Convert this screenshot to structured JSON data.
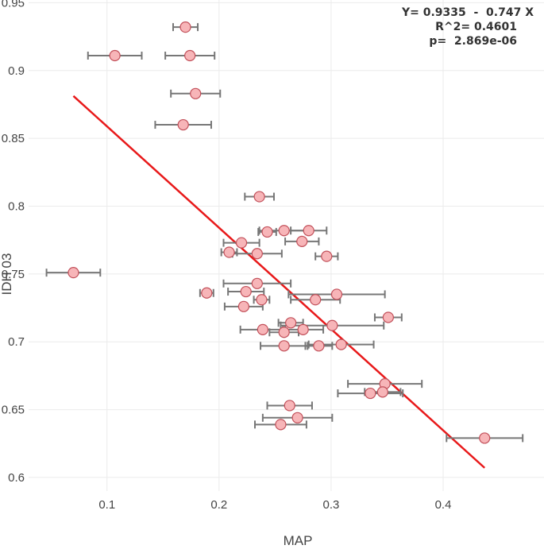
{
  "chart_data": {
    "type": "scatter",
    "title": "",
    "xlabel": "MAP",
    "ylabel": "IDH 03",
    "xlim": [
      0.03,
      0.49
    ],
    "ylim": [
      0.59,
      0.952
    ],
    "x_ticks": [
      0.1,
      0.2,
      0.3,
      0.4
    ],
    "x_tick_labels": [
      "0.1",
      "0.2",
      "0.3",
      "0.4"
    ],
    "y_ticks": [
      0.6,
      0.65,
      0.7,
      0.75,
      0.8,
      0.85,
      0.9,
      0.95
    ],
    "y_tick_labels": [
      "0.6",
      "0.65",
      "0.7",
      "0.75",
      "0.8",
      "0.85",
      "0.9",
      "0.95"
    ],
    "grid": true,
    "annotation": [
      "Y= 0.9335  -  0.747 X",
      "R^2= 0.4601",
      "p=  2.869e-06"
    ],
    "regression": {
      "intercept": 0.9335,
      "slope": -0.747,
      "x_range": [
        0.07,
        0.437
      ],
      "color": "#e8191a"
    },
    "marker_color": "#f7b5b8",
    "marker_edge": "#c2505a",
    "errorbar_color": "#777777",
    "points": [
      {
        "x": 0.17,
        "y": 0.932,
        "xerr": 0.011
      },
      {
        "x": 0.107,
        "y": 0.911,
        "xerr": 0.024
      },
      {
        "x": 0.174,
        "y": 0.911,
        "xerr": 0.022
      },
      {
        "x": 0.179,
        "y": 0.883,
        "xerr": 0.022
      },
      {
        "x": 0.168,
        "y": 0.86,
        "xerr": 0.025
      },
      {
        "x": 0.236,
        "y": 0.807,
        "xerr": 0.013
      },
      {
        "x": 0.243,
        "y": 0.781,
        "xerr": 0.008
      },
      {
        "x": 0.258,
        "y": 0.782,
        "xerr": 0.022
      },
      {
        "x": 0.28,
        "y": 0.782,
        "xerr": 0.016
      },
      {
        "x": 0.22,
        "y": 0.773,
        "xerr": 0.016
      },
      {
        "x": 0.274,
        "y": 0.774,
        "xerr": 0.015
      },
      {
        "x": 0.209,
        "y": 0.766,
        "xerr": 0.007
      },
      {
        "x": 0.234,
        "y": 0.765,
        "xerr": 0.022
      },
      {
        "x": 0.296,
        "y": 0.763,
        "xerr": 0.01
      },
      {
        "x": 0.07,
        "y": 0.751,
        "xerr": 0.024
      },
      {
        "x": 0.234,
        "y": 0.743,
        "xerr": 0.03
      },
      {
        "x": 0.189,
        "y": 0.736,
        "xerr": 0.006
      },
      {
        "x": 0.224,
        "y": 0.737,
        "xerr": 0.016
      },
      {
        "x": 0.238,
        "y": 0.731,
        "xerr": 0.007
      },
      {
        "x": 0.286,
        "y": 0.731,
        "xerr": 0.022
      },
      {
        "x": 0.305,
        "y": 0.735,
        "xerr": 0.043
      },
      {
        "x": 0.222,
        "y": 0.726,
        "xerr": 0.017
      },
      {
        "x": 0.351,
        "y": 0.718,
        "xerr": 0.012
      },
      {
        "x": 0.264,
        "y": 0.714,
        "xerr": 0.011
      },
      {
        "x": 0.301,
        "y": 0.712,
        "xerr": 0.046
      },
      {
        "x": 0.239,
        "y": 0.709,
        "xerr": 0.02
      },
      {
        "x": 0.258,
        "y": 0.707,
        "xerr": 0.013
      },
      {
        "x": 0.275,
        "y": 0.709,
        "xerr": 0.018
      },
      {
        "x": 0.258,
        "y": 0.697,
        "xerr": 0.021
      },
      {
        "x": 0.289,
        "y": 0.697,
        "xerr": 0.012
      },
      {
        "x": 0.309,
        "y": 0.698,
        "xerr": 0.029
      },
      {
        "x": 0.348,
        "y": 0.669,
        "xerr": 0.033
      },
      {
        "x": 0.335,
        "y": 0.662,
        "xerr": 0.029
      },
      {
        "x": 0.346,
        "y": 0.663,
        "xerr": 0.016
      },
      {
        "x": 0.263,
        "y": 0.653,
        "xerr": 0.02
      },
      {
        "x": 0.27,
        "y": 0.644,
        "xerr": 0.031
      },
      {
        "x": 0.255,
        "y": 0.639,
        "xerr": 0.023
      },
      {
        "x": 0.437,
        "y": 0.629,
        "xerr": 0.034
      }
    ]
  }
}
